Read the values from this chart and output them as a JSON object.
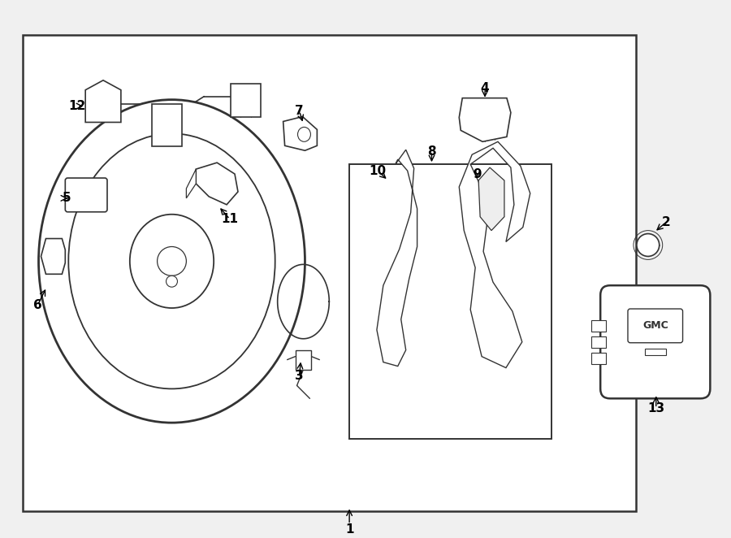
{
  "bg_color": "#f0f0f0",
  "main_border_color": "#333333",
  "line_color": "#333333",
  "label_color": "#000000",
  "inner_box_color": "#ffffff",
  "fig_width": 9.0,
  "fig_height": 6.62
}
